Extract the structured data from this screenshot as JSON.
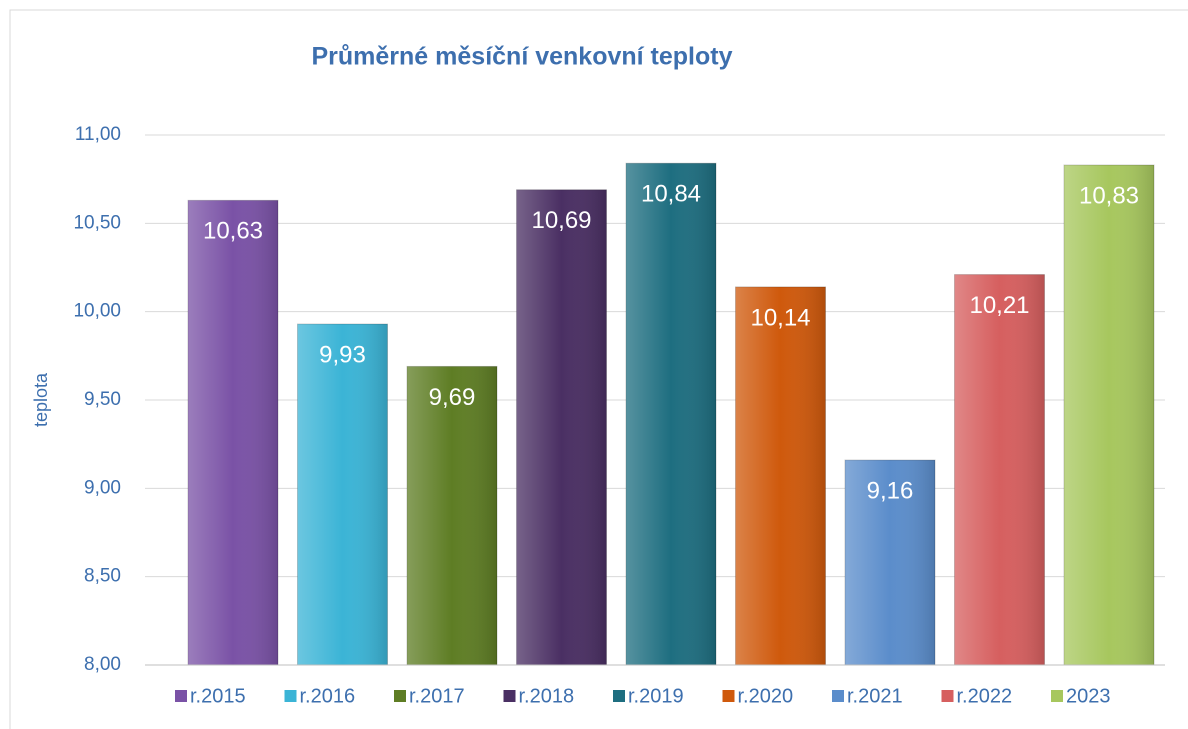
{
  "chart_data": {
    "type": "bar",
    "title": "Průměrné měsíční venkovní teploty",
    "y_label": "teplota",
    "categories": [
      "r.2015",
      "r.2016",
      "r.2017",
      "r.2018",
      "r.2019",
      "r.2020",
      "r.2021",
      "r.2022",
      "2023"
    ],
    "values": [
      10.63,
      9.93,
      9.69,
      10.69,
      10.84,
      10.14,
      9.16,
      10.21,
      10.83
    ],
    "value_labels": [
      "10,63",
      "9,93",
      "9,69",
      "10,69",
      "10,84",
      "10,14",
      "9,16",
      "10,21",
      "10,83"
    ],
    "colors": [
      "#7a52a6",
      "#3bb4d6",
      "#5e7d24",
      "#4a2f63",
      "#1e6e80",
      "#cf590c",
      "#5b8dcb",
      "#d65f5f",
      "#a7c75e"
    ],
    "ylim": [
      8,
      11
    ],
    "yticks": [
      {
        "value": 8,
        "label": "8,00"
      },
      {
        "value": 8.5,
        "label": "8,50"
      },
      {
        "value": 9,
        "label": "9,00"
      },
      {
        "value": 9.5,
        "label": "9,50"
      },
      {
        "value": 10,
        "label": "10,00"
      },
      {
        "value": 10.5,
        "label": "10,50"
      },
      {
        "value": 11,
        "label": "11,00"
      }
    ],
    "grid": true,
    "legend": "bottom"
  }
}
